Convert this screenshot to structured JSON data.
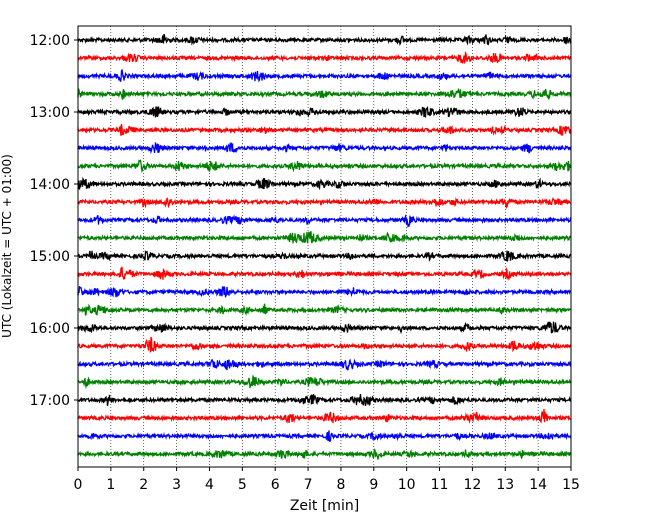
{
  "chart_data": {
    "type": "line",
    "title": "",
    "xlabel": "Zeit  [min]",
    "ylabel": "UTC (Lokalzeit = UTC + 01:00)",
    "xlim": [
      0,
      15
    ],
    "x_ticks": [
      "0",
      "1",
      "2",
      "3",
      "4",
      "5",
      "6",
      "7",
      "8",
      "9",
      "10",
      "11",
      "12",
      "13",
      "14",
      "15"
    ],
    "y_ticks": [
      "12:00",
      "13:00",
      "14:00",
      "15:00",
      "16:00",
      "17:00"
    ],
    "grid": "vertical dotted lines at each minute",
    "trace_colors": [
      "#000000",
      "#ff0000",
      "#0000ff",
      "#008000"
    ],
    "traces_per_hour": 4,
    "trace_start_times": [
      "12:00",
      "12:15",
      "12:30",
      "12:45",
      "13:00",
      "13:15",
      "13:30",
      "13:45",
      "14:00",
      "14:15",
      "14:30",
      "14:45",
      "15:00",
      "15:15",
      "15:30",
      "15:45",
      "16:00",
      "16:15",
      "16:30",
      "16:45",
      "17:00",
      "17:15",
      "17:30",
      "17:45"
    ],
    "trace_duration_min": 15
  }
}
